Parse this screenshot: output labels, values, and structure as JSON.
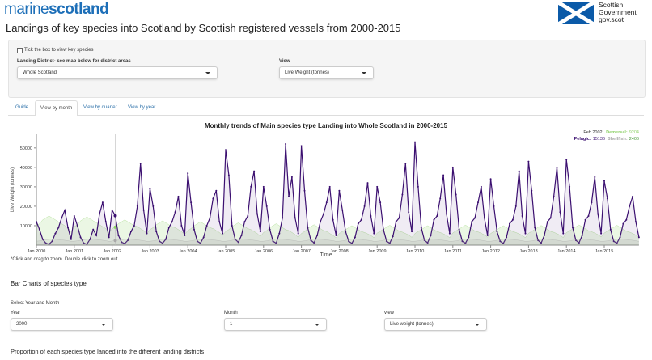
{
  "header": {
    "logo_left": "marine",
    "logo_right": "scotland",
    "gov_line1": "Scottish",
    "gov_line2": "Government",
    "gov_line3": "gov.scot"
  },
  "title": "Landings of key species into Scotland by Scottish registered vessels from 2000-2015",
  "controls": {
    "checkbox_label": "Tick the box to view key species",
    "district_label": "Landing District- see map below for district areas",
    "district_value": "Whole Scotland",
    "view_label": "View",
    "view_value": "Live Weight (tonnes)"
  },
  "tabs": [
    "Guide",
    "View by month",
    "View by quarter",
    "View by year"
  ],
  "chart_data": {
    "type": "line",
    "title": "Monthly trends of Main species type Landing into Whole Scotland in 2000-2015",
    "x_label": "Time",
    "y_label": "Live Weight (tonnes)",
    "x": [
      "2000-01",
      "2000-02",
      "2000-03",
      "2000-04",
      "2000-05",
      "2000-06",
      "2000-07",
      "2000-08",
      "2000-09",
      "2000-10",
      "2000-11",
      "2000-12",
      "2001-01",
      "2001-02",
      "2001-03",
      "2001-04",
      "2001-05",
      "2001-06",
      "2001-07",
      "2001-08",
      "2001-09",
      "2001-10",
      "2001-11",
      "2001-12",
      "2002-01",
      "2002-02",
      "2002-03",
      "2002-04",
      "2002-05",
      "2002-06",
      "2002-07",
      "2002-08",
      "2002-09",
      "2002-10",
      "2002-11",
      "2002-12",
      "2003-01",
      "2003-02",
      "2003-03",
      "2003-04",
      "2003-05",
      "2003-06",
      "2003-07",
      "2003-08",
      "2003-09",
      "2003-10",
      "2003-11",
      "2003-12",
      "2004-01",
      "2004-02",
      "2004-03",
      "2004-04",
      "2004-05",
      "2004-06",
      "2004-07",
      "2004-08",
      "2004-09",
      "2004-10",
      "2004-11",
      "2004-12",
      "2005-01",
      "2005-02",
      "2005-03",
      "2005-04",
      "2005-05",
      "2005-06",
      "2005-07",
      "2005-08",
      "2005-09",
      "2005-10",
      "2005-11",
      "2005-12",
      "2006-01",
      "2006-02",
      "2006-03",
      "2006-04",
      "2006-05",
      "2006-06",
      "2006-07",
      "2006-08",
      "2006-09",
      "2006-10",
      "2006-11",
      "2006-12",
      "2007-01",
      "2007-02",
      "2007-03",
      "2007-04",
      "2007-05",
      "2007-06",
      "2007-07",
      "2007-08",
      "2007-09",
      "2007-10",
      "2007-11",
      "2007-12",
      "2008-01",
      "2008-02",
      "2008-03",
      "2008-04",
      "2008-05",
      "2008-06",
      "2008-07",
      "2008-08",
      "2008-09",
      "2008-10",
      "2008-11",
      "2008-12",
      "2009-01",
      "2009-02",
      "2009-03",
      "2009-04",
      "2009-05",
      "2009-06",
      "2009-07",
      "2009-08",
      "2009-09",
      "2009-10",
      "2009-11",
      "2009-12",
      "2010-01",
      "2010-02",
      "2010-03",
      "2010-04",
      "2010-05",
      "2010-06",
      "2010-07",
      "2010-08",
      "2010-09",
      "2010-10",
      "2010-11",
      "2010-12",
      "2011-01",
      "2011-02",
      "2011-03",
      "2011-04",
      "2011-05",
      "2011-06",
      "2011-07",
      "2011-08",
      "2011-09",
      "2011-10",
      "2011-11",
      "2011-12",
      "2012-01",
      "2012-02",
      "2012-03",
      "2012-04",
      "2012-05",
      "2012-06",
      "2012-07",
      "2012-08",
      "2012-09",
      "2012-10",
      "2012-11",
      "2012-12",
      "2013-01",
      "2013-02",
      "2013-03",
      "2013-04",
      "2013-05",
      "2013-06",
      "2013-07",
      "2013-08",
      "2013-09",
      "2013-10",
      "2013-11",
      "2013-12",
      "2014-01",
      "2014-02",
      "2014-03",
      "2014-04",
      "2014-05",
      "2014-06",
      "2014-07",
      "2014-08",
      "2014-09",
      "2014-10",
      "2014-11",
      "2014-12",
      "2015-01",
      "2015-02",
      "2015-03",
      "2015-04",
      "2015-05",
      "2015-06",
      "2015-07",
      "2015-08",
      "2015-09",
      "2015-10",
      "2015-11",
      "2015-12"
    ],
    "series": [
      {
        "name": "Demersal",
        "color": "#8fd16a",
        "values": [
          10000,
          11000,
          13000,
          14000,
          15000,
          14000,
          13000,
          12000,
          11000,
          10000,
          9000,
          7000,
          9500,
          10500,
          12500,
          13500,
          14500,
          13500,
          12500,
          11500,
          10500,
          9500,
          8500,
          6500,
          8500,
          9204,
          11000,
          12000,
          13000,
          12000,
          11000,
          10000,
          9500,
          8500,
          7500,
          6000,
          8000,
          9000,
          10500,
          11500,
          12500,
          11500,
          10500,
          9500,
          9000,
          8000,
          7000,
          5500,
          7500,
          8500,
          10000,
          11000,
          12000,
          11000,
          10000,
          9000,
          8500,
          7500,
          6500,
          5000,
          7000,
          8000,
          9500,
          10500,
          11500,
          10500,
          9500,
          8500,
          8000,
          7000,
          6000,
          4500,
          6500,
          7500,
          9000,
          10000,
          11000,
          10000,
          9000,
          8000,
          7500,
          6500,
          5500,
          4000,
          6000,
          7000,
          8500,
          9500,
          10500,
          9500,
          8500,
          7500,
          7000,
          6000,
          5000,
          3800,
          6000,
          7000,
          8000,
          9000,
          10000,
          9000,
          8000,
          7000,
          6500,
          5800,
          5000,
          3800,
          6200,
          7200,
          8200,
          9200,
          10200,
          9200,
          8200,
          7200,
          6700,
          6000,
          5200,
          4000,
          6000,
          7000,
          8000,
          9000,
          10000,
          9000,
          8000,
          7000,
          6500,
          5800,
          5000,
          3800,
          6300,
          7300,
          8300,
          9300,
          10300,
          9300,
          8300,
          7300,
          6800,
          6100,
          5300,
          4100,
          6000,
          7000,
          8000,
          9000,
          10000,
          9000,
          8000,
          7000,
          6500,
          5800,
          5000,
          3800,
          6100,
          7100,
          8100,
          9100,
          10100,
          9100,
          8100,
          7100,
          6600,
          5900,
          5100,
          3900,
          6400,
          7400,
          8400,
          9400,
          10400,
          9400,
          8400,
          7400,
          6900,
          6200,
          5400,
          4200,
          6200,
          7200,
          8200,
          9200,
          10200,
          9200,
          8200,
          7200,
          6700,
          6000,
          5200,
          4000
        ]
      },
      {
        "name": "Pelagic",
        "color": "#3b0f70",
        "values": [
          12000,
          8000,
          3000,
          1000,
          500,
          2000,
          6000,
          9000,
          14000,
          18000,
          9000,
          3000,
          15000,
          10000,
          4000,
          1000,
          500,
          3000,
          8000,
          5000,
          16000,
          22000,
          12000,
          4000,
          18000,
          15136,
          5000,
          1500,
          800,
          2500,
          7000,
          10000,
          20000,
          42000,
          18000,
          6000,
          29000,
          20000,
          7000,
          2000,
          1000,
          3000,
          9000,
          12000,
          17000,
          25000,
          10000,
          5000,
          37000,
          22000,
          8000,
          2000,
          1000,
          4000,
          10000,
          14000,
          24000,
          28000,
          12000,
          6000,
          49000,
          36000,
          10000,
          3000,
          1500,
          5000,
          12000,
          15000,
          30000,
          38000,
          16000,
          7000,
          30000,
          20000,
          8000,
          2000,
          1000,
          6000,
          14000,
          52000,
          25000,
          35000,
          14000,
          6000,
          51000,
          28000,
          9000,
          2500,
          1200,
          5000,
          12000,
          16000,
          22000,
          30000,
          13000,
          5000,
          28000,
          18000,
          7000,
          2000,
          900,
          4000,
          11000,
          13000,
          20000,
          32000,
          15000,
          6000,
          30000,
          22000,
          8000,
          2000,
          1000,
          4500,
          12000,
          14000,
          26000,
          42000,
          17000,
          7000,
          53000,
          30000,
          9000,
          2500,
          1200,
          5000,
          13000,
          15000,
          24000,
          36000,
          16000,
          6000,
          40000,
          26000,
          8000,
          2000,
          1000,
          4000,
          12000,
          14000,
          22000,
          30000,
          14000,
          5000,
          34000,
          20000,
          7000,
          2000,
          900,
          4000,
          11000,
          13000,
          20000,
          38000,
          15000,
          6000,
          43000,
          28000,
          9000,
          2500,
          1100,
          5000,
          12000,
          14000,
          25000,
          40000,
          17000,
          6000,
          44000,
          30000,
          9000,
          2500,
          1200,
          5000,
          13000,
          15000,
          22000,
          35000,
          16000,
          6000,
          33000,
          24000,
          8000,
          2000,
          1000,
          4000,
          11000,
          13000,
          20000,
          25000,
          12000,
          4000
        ]
      },
      {
        "name": "Shellfish",
        "color": "#a9a9a9",
        "values": [
          2000,
          2200,
          2500,
          2800,
          3000,
          3100,
          3000,
          2900,
          2700,
          2500,
          2300,
          1900,
          2000,
          2200,
          2500,
          2800,
          3000,
          3100,
          3000,
          2900,
          2700,
          2500,
          2300,
          1900,
          2100,
          2406,
          2600,
          2800,
          3000,
          3100,
          3000,
          2900,
          2700,
          2500,
          2300,
          1900,
          2000,
          2200,
          2500,
          2800,
          3000,
          3100,
          3000,
          2900,
          2700,
          2500,
          2300,
          1900,
          2000,
          2200,
          2500,
          2800,
          3000,
          3100,
          3000,
          2900,
          2700,
          2500,
          2300,
          1900,
          2000,
          2200,
          2500,
          2800,
          3000,
          3100,
          3000,
          2900,
          2700,
          2500,
          2300,
          1900,
          2000,
          2200,
          2500,
          2800,
          3000,
          3100,
          3000,
          2900,
          2700,
          2500,
          2300,
          1900,
          2000,
          2200,
          2500,
          2800,
          3000,
          3100,
          3000,
          2900,
          2700,
          2500,
          2300,
          1900,
          2000,
          2200,
          2500,
          2800,
          3000,
          3100,
          3000,
          2900,
          2700,
          2500,
          2300,
          1900,
          2000,
          2200,
          2500,
          2800,
          3000,
          3100,
          3000,
          2900,
          2700,
          2500,
          2300,
          1900,
          2000,
          2200,
          2500,
          2800,
          3000,
          3100,
          3000,
          2900,
          2700,
          2500,
          2300,
          1900,
          2000,
          2200,
          2500,
          2800,
          3000,
          3100,
          3000,
          2900,
          2700,
          2500,
          2300,
          1900,
          2000,
          2200,
          2500,
          2800,
          3000,
          3100,
          3000,
          2900,
          2700,
          2500,
          2300,
          1900,
          2000,
          2200,
          2500,
          2800,
          3000,
          3100,
          3000,
          2900,
          2700,
          2500,
          2300,
          1900,
          2000,
          2200,
          2500,
          2800,
          3000,
          3100,
          3000,
          2900,
          2700,
          2500,
          2300,
          1900,
          2000,
          2200,
          2500,
          2800,
          3000,
          3100,
          3000,
          2900,
          2700,
          2500,
          2300,
          1900
        ]
      }
    ],
    "ylim": [
      0,
      57000
    ],
    "yticks": [
      10000,
      20000,
      30000,
      40000,
      50000
    ],
    "xticks": [
      {
        "value": "2000-01",
        "label": "Jan 2000"
      },
      {
        "value": "2001-01",
        "label": "Jan 2001"
      },
      {
        "value": "2002-01",
        "label": "Jan 2002"
      },
      {
        "value": "2003-01",
        "label": "Jan 2003"
      },
      {
        "value": "2004-01",
        "label": "Jan 2004"
      },
      {
        "value": "2005-01",
        "label": "Jan 2005"
      },
      {
        "value": "2006-01",
        "label": "Jan 2006"
      },
      {
        "value": "2007-01",
        "label": "Jan 2007"
      },
      {
        "value": "2008-01",
        "label": "Jan 2008"
      },
      {
        "value": "2009-01",
        "label": "Jan 2009"
      },
      {
        "value": "2010-01",
        "label": "Jan 2010"
      },
      {
        "value": "2011-01",
        "label": "Jan 2011"
      },
      {
        "value": "2012-01",
        "label": "Jan 2012"
      },
      {
        "value": "2013-01",
        "label": "Jan 2013"
      },
      {
        "value": "2014-01",
        "label": "Jan 2014"
      },
      {
        "value": "2015-01",
        "label": "Jan 2015"
      }
    ],
    "hover": {
      "date": "Feb 2002:",
      "items": [
        {
          "name": "Demersal:",
          "value": 9204
        },
        {
          "name": "Pelagic:",
          "value": 15136
        },
        {
          "name": "Shellfish:",
          "value": 2406
        }
      ]
    }
  },
  "note": "*Click and drag to zoom. Double click to zoom out.",
  "bar_section": {
    "heading": "Bar Charts of species type",
    "select_label": "Select Year and Month",
    "year_label": "Year",
    "year_value": "2000",
    "month_label": "Month",
    "month_value": "1",
    "view_label": "view",
    "view_value": "Live weight (tonnes)",
    "subheading": "Proportion of each species type landed into the different landing districts"
  }
}
